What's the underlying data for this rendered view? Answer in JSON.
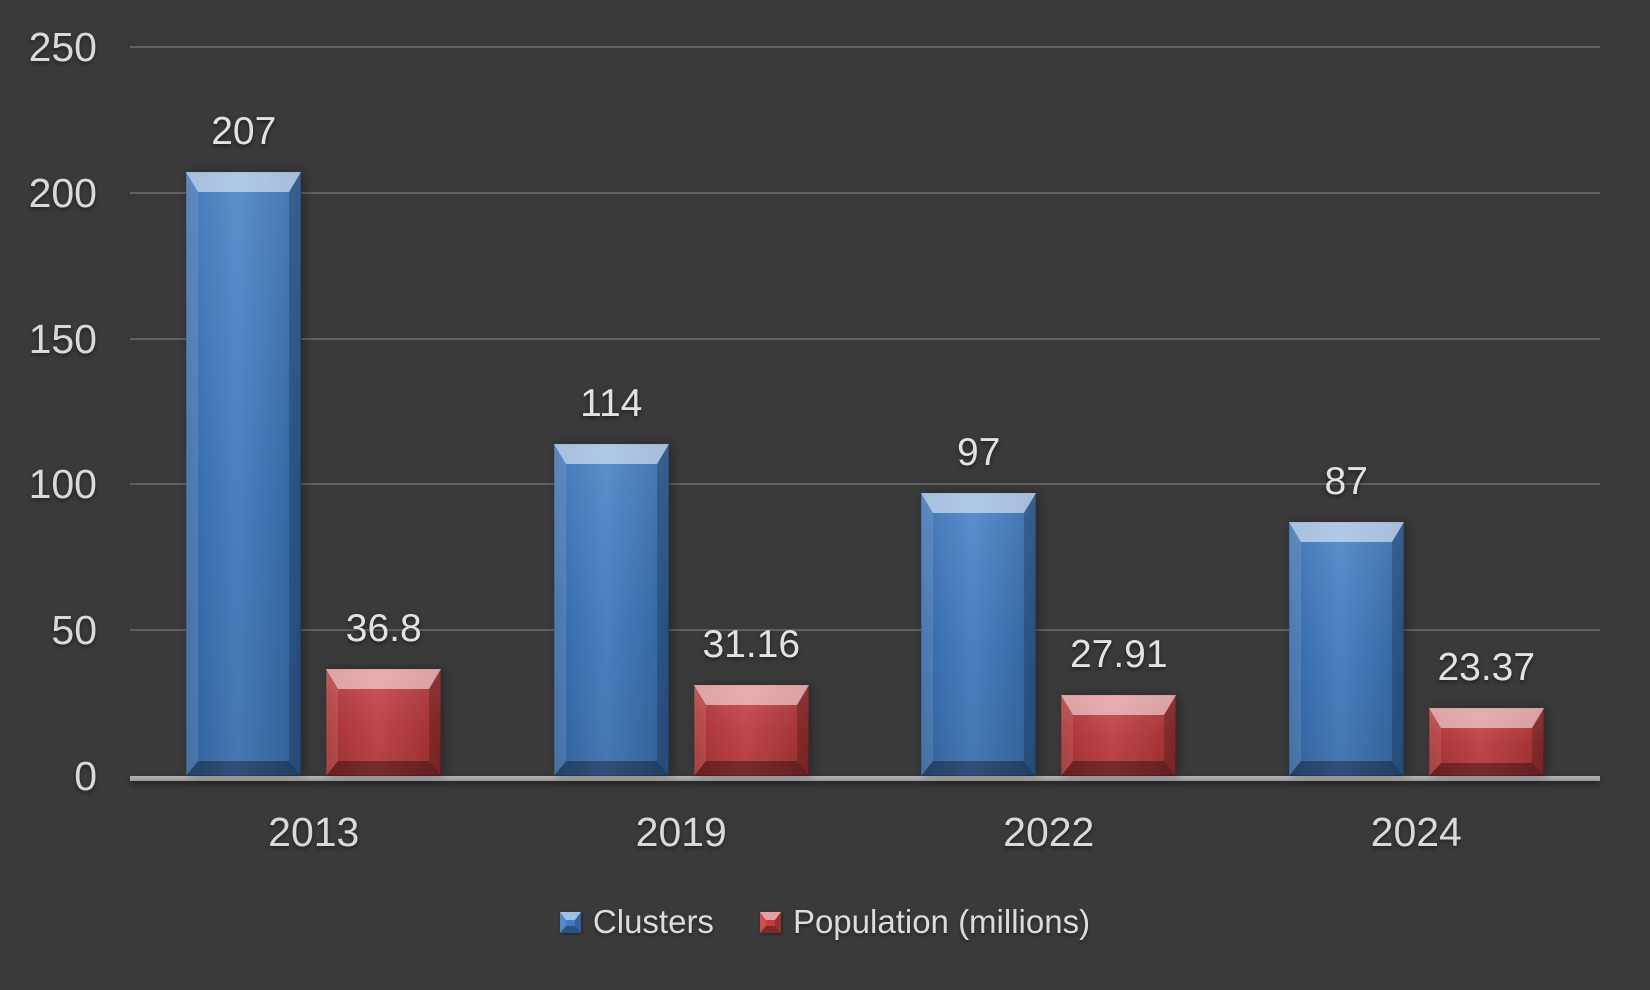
{
  "chart_data": {
    "type": "bar",
    "title": "",
    "xlabel": "",
    "ylabel": "",
    "categories": [
      "2013",
      "2019",
      "2022",
      "2024"
    ],
    "series": [
      {
        "name": "Clusters",
        "color": "#3E7CC4",
        "values": [
          207,
          114,
          97,
          87
        ],
        "labels": [
          "207",
          "114",
          "97",
          "87"
        ]
      },
      {
        "name": "Population (millions)",
        "color": "#C33B3D",
        "values": [
          36.8,
          31.16,
          27.91,
          23.37
        ],
        "labels": [
          "36.8",
          "31.16",
          "27.91",
          "23.37"
        ]
      }
    ],
    "ylim": [
      0,
      250
    ],
    "yticks": [
      0,
      50,
      100,
      150,
      200,
      250
    ],
    "grid": true,
    "legend_position": "bottom"
  },
  "colors": {
    "background_center": "#565656",
    "background_edge": "#262626",
    "text": "#D9D9D9",
    "axis_line": "#A6A6A6",
    "gridline": "#DEDEDE",
    "series_blue": "#3E7CC4",
    "series_red": "#C33B3D"
  }
}
